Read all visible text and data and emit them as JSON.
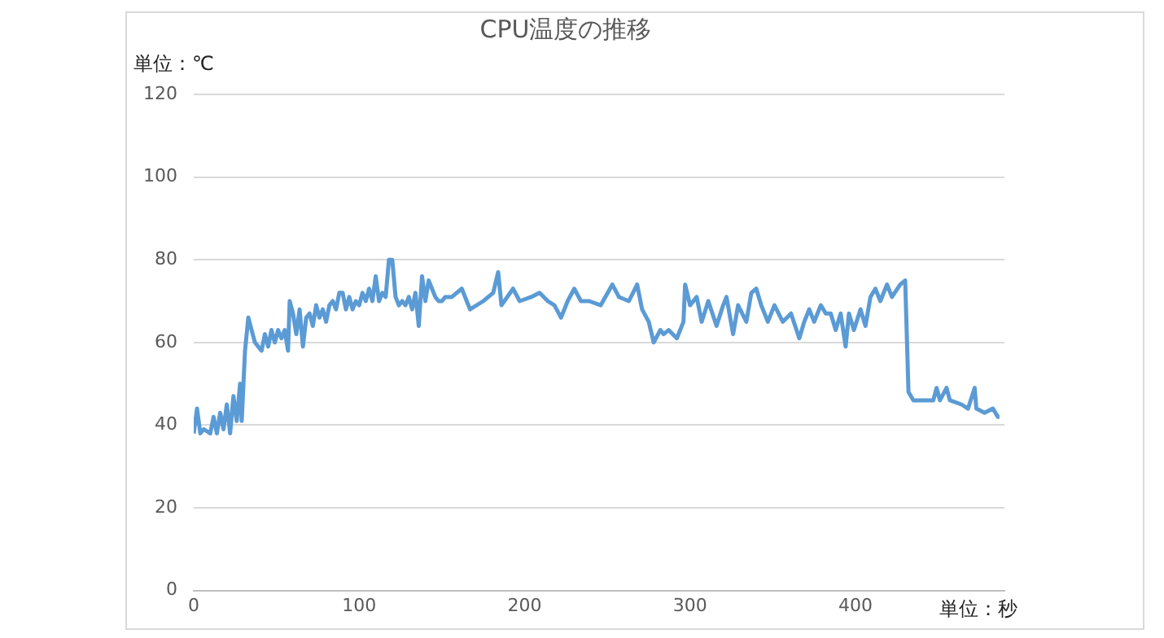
{
  "chart_data": {
    "type": "line",
    "title": "CPU温度の推移",
    "ylabel": "単位：℃",
    "xlabel": "単位：秒",
    "x": [
      0,
      2,
      4,
      6,
      10,
      12,
      14,
      16,
      18,
      20,
      22,
      24,
      26,
      28,
      29,
      31,
      33,
      35,
      37,
      39,
      41,
      43,
      45,
      47,
      49,
      51,
      53,
      55,
      57,
      58,
      60,
      62,
      64,
      66,
      68,
      70,
      72,
      74,
      76,
      78,
      80,
      82,
      84,
      86,
      88,
      90,
      92,
      94,
      96,
      98,
      100,
      102,
      104,
      106,
      108,
      110,
      112,
      114,
      116,
      118,
      120,
      122,
      124,
      126,
      128,
      130,
      132,
      134,
      136,
      138,
      140,
      142,
      144,
      146,
      148,
      150,
      152,
      156,
      162,
      167,
      175,
      181,
      184,
      186,
      193,
      197,
      204,
      209,
      214,
      218,
      222,
      226,
      230,
      234,
      239,
      246,
      253,
      257,
      263,
      268,
      271,
      275,
      278,
      282,
      284,
      287,
      292,
      296,
      297,
      300,
      304,
      307,
      311,
      316,
      320,
      322,
      326,
      329,
      334,
      337,
      340,
      343,
      347,
      351,
      356,
      361,
      366,
      369,
      372,
      375,
      379,
      382,
      385,
      388,
      391,
      394,
      396,
      399,
      403,
      406,
      409,
      412,
      415,
      419,
      422,
      427,
      430,
      432,
      435,
      439,
      447,
      449,
      451,
      455,
      457,
      464,
      468,
      472,
      473,
      478,
      483,
      486,
      487
    ],
    "series": [
      {
        "color": "#5b9bd5",
        "values": [
          38,
          44,
          38,
          39,
          38,
          42,
          38,
          43,
          39,
          45,
          38,
          47,
          41,
          50,
          41,
          58,
          66,
          63,
          60,
          59,
          58,
          62,
          59,
          63,
          60,
          63,
          61,
          63,
          58,
          70,
          67,
          62,
          68,
          59,
          66,
          67,
          64,
          69,
          66,
          68,
          65,
          69,
          70,
          68,
          72,
          72,
          68,
          71,
          68,
          70,
          69,
          72,
          70,
          73,
          70,
          76,
          70,
          72,
          71,
          80,
          80,
          71,
          69,
          70,
          69,
          71,
          68,
          72,
          64,
          76,
          70,
          75,
          73,
          71,
          70,
          70,
          71,
          71,
          73,
          68,
          70,
          72,
          77,
          69,
          73,
          70,
          71,
          72,
          70,
          69,
          66,
          70,
          73,
          70,
          70,
          69,
          74,
          71,
          70,
          74,
          68,
          65,
          60,
          63,
          62,
          63,
          61,
          65,
          74,
          69,
          71,
          65,
          70,
          64,
          69,
          71,
          62,
          69,
          65,
          72,
          73,
          69,
          65,
          69,
          65,
          67,
          61,
          65,
          68,
          65,
          69,
          67,
          67,
          63,
          67,
          59,
          67,
          63,
          68,
          64,
          71,
          73,
          70,
          74,
          71,
          74,
          75,
          48,
          46,
          46,
          46,
          49,
          46,
          49,
          46,
          45,
          44,
          49,
          44,
          43,
          44,
          42,
          42
        ]
      }
    ],
    "xlim": [
      0,
      490
    ],
    "xticks": [
      0,
      100,
      200,
      300,
      400
    ],
    "ylim": [
      0,
      120
    ],
    "yticks": [
      0,
      20,
      40,
      60,
      80,
      100,
      120
    ],
    "grid": "y",
    "legend": false,
    "marker": "none",
    "line_style": "solid"
  }
}
